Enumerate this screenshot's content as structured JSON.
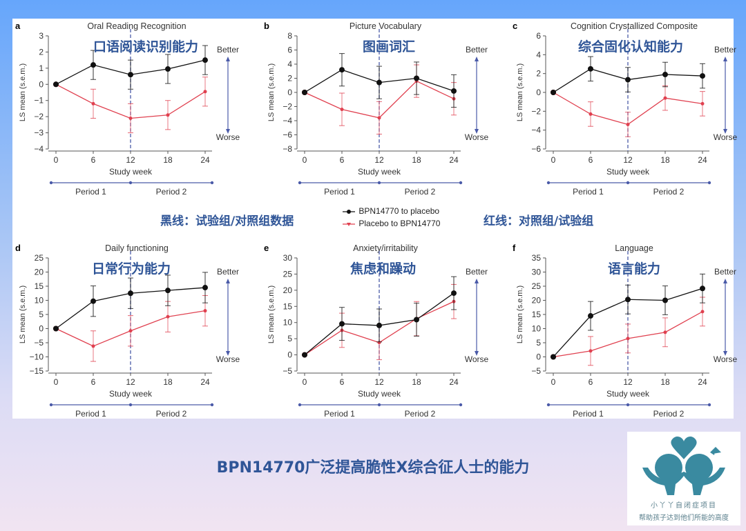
{
  "slide_title": "BPN14770广泛提高脆性X综合征人士的能力",
  "notes": {
    "black_line": "黑线：试验组/对照组数据",
    "red_line": "红线：对照组/试验组"
  },
  "legend": {
    "black": "BPN14770 to placebo",
    "red": "Placebo to BPN14770"
  },
  "colors": {
    "black_series": "#111111",
    "red_series": "#e0404f",
    "annotation_blue": "#2f5597",
    "period_blue": "#4a5aa8"
  },
  "logo": {
    "name": "小丫丫自闭症项目",
    "slogan": "帮助孩子达到他们所能的高度",
    "color": "#3a8aa0"
  },
  "chart_data": [
    {
      "type": "line",
      "letter": "a",
      "title": "Oral Reading Recognition",
      "cn_label": "口语阅读识别能力",
      "xlabel": "Study week",
      "ylabel": "LS mean (s.e.m.)",
      "x": [
        0,
        6,
        12,
        18,
        24
      ],
      "ylim": [
        -4,
        3
      ],
      "yticks": [
        -4,
        -3,
        -2,
        -1,
        0,
        1,
        2,
        3
      ],
      "better": "Better",
      "worse": "Worse",
      "periods": [
        "Period 1",
        "Period 2"
      ],
      "series": [
        {
          "name": "BPN14770 to placebo",
          "color": "black",
          "values": [
            0,
            1.2,
            0.6,
            0.95,
            1.5
          ],
          "sem": [
            0,
            0.9,
            0.9,
            0.9,
            0.9
          ]
        },
        {
          "name": "Placebo to BPN14770",
          "color": "red",
          "values": [
            0,
            -1.2,
            -2.1,
            -1.9,
            -0.45
          ],
          "sem": [
            0,
            0.9,
            0.9,
            0.9,
            0.9
          ]
        }
      ]
    },
    {
      "type": "line",
      "letter": "b",
      "title": "Picture Vocabulary",
      "cn_label": "图画词汇",
      "xlabel": "Study week",
      "ylabel": "LS mean (s.e.m.)",
      "x": [
        0,
        6,
        12,
        18,
        24
      ],
      "ylim": [
        -8,
        8
      ],
      "yticks": [
        -8,
        -6,
        -4,
        -2,
        0,
        2,
        4,
        6,
        8
      ],
      "better": "Better",
      "worse": "Worse",
      "periods": [
        "Period 1",
        "Period 2"
      ],
      "series": [
        {
          "name": "BPN14770 to placebo",
          "color": "black",
          "values": [
            0,
            3.2,
            1.4,
            2.0,
            0.2
          ],
          "sem": [
            0,
            2.3,
            2.3,
            2.3,
            2.3
          ]
        },
        {
          "name": "Placebo to BPN14770",
          "color": "red",
          "values": [
            0,
            -2.4,
            -3.6,
            1.6,
            -0.9
          ],
          "sem": [
            0,
            2.3,
            2.3,
            2.3,
            2.3
          ]
        }
      ]
    },
    {
      "type": "line",
      "letter": "c",
      "title": "Cognition Crystallized Composite",
      "cn_label": "综合固化认知能力",
      "xlabel": "Study week",
      "ylabel": "LS mean (s.e.m.)",
      "x": [
        0,
        6,
        12,
        18,
        24
      ],
      "ylim": [
        -6,
        6
      ],
      "yticks": [
        -6,
        -4,
        -2,
        0,
        2,
        4,
        6
      ],
      "better": "Better",
      "worse": "Worse",
      "periods": [
        "Period 1",
        "Period 2"
      ],
      "series": [
        {
          "name": "BPN14770 to placebo",
          "color": "black",
          "values": [
            0,
            2.5,
            1.35,
            1.9,
            1.75
          ],
          "sem": [
            0,
            1.3,
            1.3,
            1.3,
            1.3
          ]
        },
        {
          "name": "Placebo to BPN14770",
          "color": "red",
          "values": [
            0,
            -2.3,
            -3.4,
            -0.6,
            -1.2
          ],
          "sem": [
            0,
            1.3,
            1.3,
            1.3,
            1.3
          ]
        }
      ]
    },
    {
      "type": "line",
      "letter": "d",
      "title": "Daily functioning",
      "cn_label": "日常行为能力",
      "xlabel": "Study week",
      "ylabel": "LS mean (s.e.m.)",
      "x": [
        0,
        6,
        12,
        18,
        24
      ],
      "ylim": [
        -15,
        25
      ],
      "yticks": [
        -15,
        -10,
        -5,
        0,
        5,
        10,
        15,
        20,
        25
      ],
      "better": "Better",
      "worse": "Worse",
      "periods": [
        "Period 1",
        "Period 2"
      ],
      "series": [
        {
          "name": "BPN14770 to placebo",
          "color": "black",
          "values": [
            0,
            9.7,
            12.5,
            13.5,
            14.5
          ],
          "sem": [
            0,
            5.4,
            5.4,
            5.4,
            5.4
          ]
        },
        {
          "name": "Placebo to BPN14770",
          "color": "red",
          "values": [
            0,
            -6.2,
            -0.8,
            4.2,
            6.3
          ],
          "sem": [
            0,
            5.4,
            5.4,
            5.4,
            5.4
          ]
        }
      ]
    },
    {
      "type": "line",
      "letter": "e",
      "title": "Anxiety/irritability",
      "cn_label": "焦虑和躁动",
      "xlabel": "Study week",
      "ylabel": "LS mean (s.e.m.)",
      "x": [
        0,
        6,
        12,
        18,
        24
      ],
      "ylim": [
        -5,
        30
      ],
      "yticks": [
        -5,
        0,
        5,
        10,
        15,
        20,
        25,
        30
      ],
      "better": "Better",
      "worse": "Worse",
      "periods": [
        "Period 1",
        "Period 2"
      ],
      "series": [
        {
          "name": "BPN14770 to placebo",
          "color": "black",
          "values": [
            0,
            9.6,
            9.1,
            10.9,
            19.1
          ],
          "sem": [
            0,
            5.1,
            5.1,
            5.1,
            5.1
          ]
        },
        {
          "name": "Placebo to BPN14770",
          "color": "red",
          "values": [
            0,
            7.6,
            3.8,
            11.2,
            16.5
          ],
          "sem": [
            0,
            5.3,
            5.3,
            5.3,
            5.3
          ]
        }
      ]
    },
    {
      "type": "line",
      "letter": "f",
      "title": "Language",
      "cn_label": "语言能力",
      "xlabel": "Study week",
      "ylabel": "LS mean (s.e.m.)",
      "x": [
        0,
        6,
        12,
        18,
        24
      ],
      "ylim": [
        -5,
        35
      ],
      "yticks": [
        -5,
        0,
        5,
        10,
        15,
        20,
        25,
        30,
        35
      ],
      "better": "Better",
      "worse": "Worse",
      "periods": [
        "Period 1",
        "Period 2"
      ],
      "series": [
        {
          "name": "BPN14770 to placebo",
          "color": "black",
          "values": [
            0,
            14.5,
            20.3,
            20.0,
            24.2
          ],
          "sem": [
            0,
            5.1,
            5.1,
            5.1,
            5.1
          ]
        },
        {
          "name": "Placebo to BPN14770",
          "color": "red",
          "values": [
            0,
            2.1,
            6.5,
            8.7,
            16.0
          ],
          "sem": [
            0,
            5.1,
            5.1,
            5.1,
            5.1
          ]
        }
      ]
    }
  ]
}
